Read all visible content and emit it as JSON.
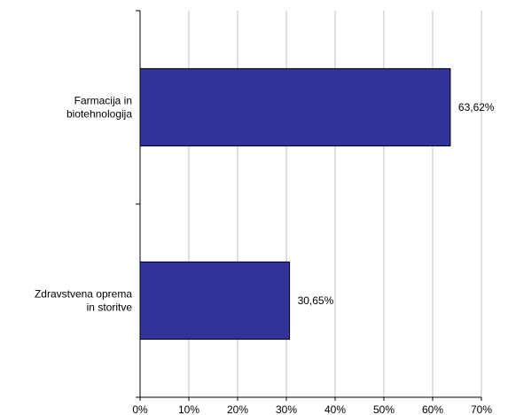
{
  "chart_data": {
    "type": "bar",
    "orientation": "horizontal",
    "title": "",
    "xlabel": "",
    "ylabel": "",
    "categories": [
      [
        "Farmacija in",
        "biotehnologija"
      ],
      [
        "Zdravstvena oprema",
        "in storitve"
      ]
    ],
    "values": [
      63.62,
      30.65
    ],
    "value_labels": [
      "63,62%",
      "30,65%"
    ],
    "xlim": [
      0,
      70
    ],
    "xticks": [
      0,
      10,
      20,
      30,
      40,
      50,
      60,
      70
    ],
    "xtick_labels": [
      "0%",
      "10%",
      "20%",
      "30%",
      "40%",
      "50%",
      "60%",
      "70%"
    ],
    "grid": "vertical",
    "legend": "none",
    "bar_color": "#333399",
    "grid_color": "#c0c0c0"
  }
}
